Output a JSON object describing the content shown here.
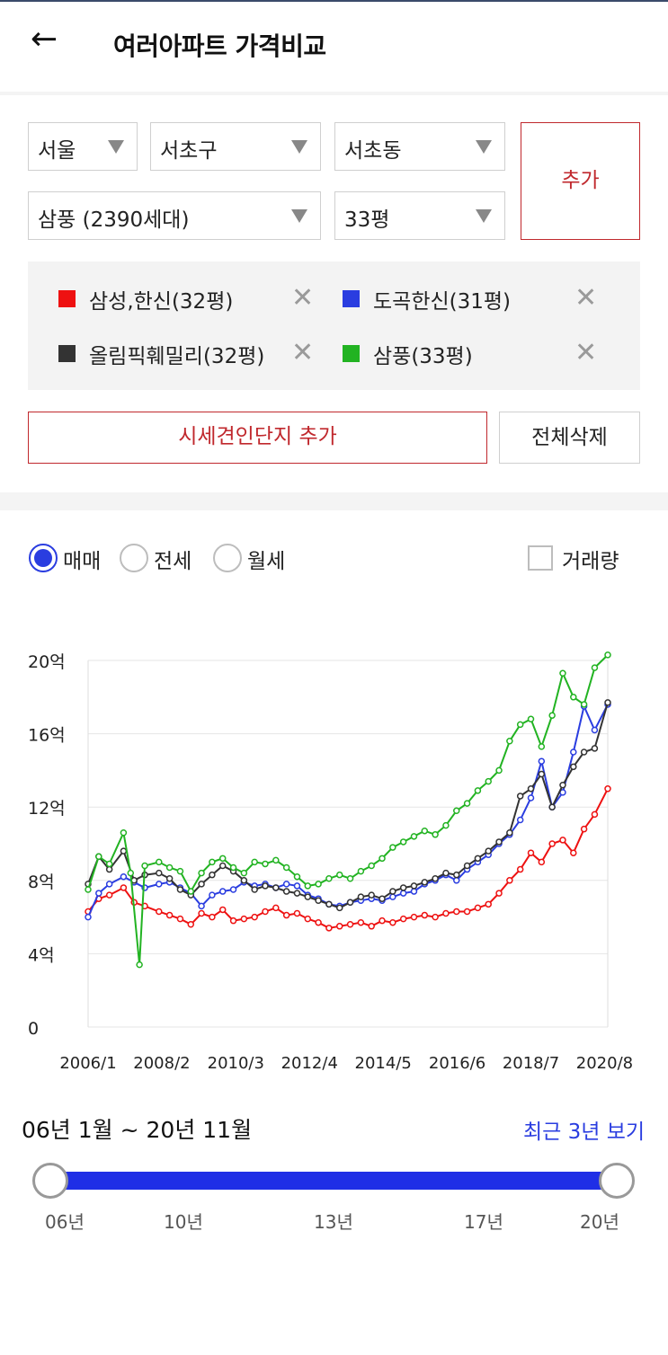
{
  "header": {
    "back_icon": "arrow-left-icon",
    "back_glyph": "←",
    "title": "여러아파트 가격비교"
  },
  "selectors": {
    "city": "서울",
    "district": "서초구",
    "dong": "서초동",
    "apartment": "삼풍 (2390세대)",
    "size": "33평",
    "add_label": "추가"
  },
  "legend": [
    {
      "label": "삼성,한신(32평)",
      "color": "#ee1111"
    },
    {
      "label": "도곡한신(31평)",
      "color": "#2a3de0"
    },
    {
      "label": "올림픽훼밀리(32평)",
      "color": "#333333"
    },
    {
      "label": "삼풍(33평)",
      "color": "#22b322"
    }
  ],
  "remove_glyph": "✕",
  "actions": {
    "add_similar": "시세견인단지 추가",
    "delete_all": "전체삭제"
  },
  "radio": {
    "sale": "매매",
    "jeonse": "전세",
    "monthly": "월세",
    "selected": "sale"
  },
  "volume_checkbox": {
    "label": "거래량",
    "checked": false
  },
  "range": {
    "text": "06년 1월 ~ 20년 11월",
    "recent_link": "최근 3년 보기",
    "ticks": [
      "06년",
      "10년",
      "13년",
      "17년",
      "20년"
    ]
  },
  "chart_data": {
    "type": "line",
    "ylim": [
      0,
      20
    ],
    "y_ticks": [
      0,
      4,
      8,
      12,
      16,
      20
    ],
    "y_tick_labels": [
      "0",
      "4억",
      "8억",
      "12억",
      "16억",
      "20억"
    ],
    "x_range": [
      2006.0,
      2020.67
    ],
    "x_ticks": [
      2006.0,
      2008.08,
      2010.17,
      2012.25,
      2014.33,
      2016.42,
      2018.5,
      2020.58
    ],
    "x_tick_labels": [
      "2006/1",
      "2008/2",
      "2010/3",
      "2012/4",
      "2014/5",
      "2016/6",
      "2018/7",
      "2020/8"
    ],
    "grid": true,
    "series": [
      {
        "name": "삼성,한신(32평)",
        "color": "#ee1111",
        "x": [
          2006.0,
          2006.3,
          2006.6,
          2007.0,
          2007.3,
          2007.6,
          2008.0,
          2008.3,
          2008.6,
          2008.9,
          2009.2,
          2009.5,
          2009.8,
          2010.1,
          2010.4,
          2010.7,
          2011.0,
          2011.3,
          2011.6,
          2011.9,
          2012.2,
          2012.5,
          2012.8,
          2013.1,
          2013.4,
          2013.7,
          2014.0,
          2014.3,
          2014.6,
          2014.9,
          2015.2,
          2015.5,
          2015.8,
          2016.1,
          2016.4,
          2016.7,
          2017.0,
          2017.3,
          2017.6,
          2017.9,
          2018.2,
          2018.5,
          2018.8,
          2019.1,
          2019.4,
          2019.7,
          2020.0,
          2020.3,
          2020.67
        ],
        "y": [
          6.3,
          7.0,
          7.2,
          7.6,
          6.8,
          6.6,
          6.3,
          6.1,
          5.9,
          5.6,
          6.2,
          6.0,
          6.4,
          5.8,
          5.9,
          6.0,
          6.3,
          6.5,
          6.1,
          6.2,
          5.9,
          5.7,
          5.4,
          5.5,
          5.6,
          5.7,
          5.5,
          5.8,
          5.7,
          5.9,
          6.0,
          6.1,
          6.0,
          6.2,
          6.3,
          6.3,
          6.5,
          6.7,
          7.3,
          8.0,
          8.6,
          9.5,
          9.0,
          10.0,
          10.2,
          9.5,
          10.8,
          11.6,
          13.0
        ]
      },
      {
        "name": "도곡한신(31평)",
        "color": "#2a3de0",
        "x": [
          2006.0,
          2006.3,
          2006.6,
          2007.0,
          2007.3,
          2007.6,
          2008.0,
          2008.3,
          2008.6,
          2008.9,
          2009.2,
          2009.5,
          2009.8,
          2010.1,
          2010.4,
          2010.7,
          2011.0,
          2011.3,
          2011.6,
          2011.9,
          2012.2,
          2012.5,
          2012.8,
          2013.1,
          2013.4,
          2013.7,
          2014.0,
          2014.3,
          2014.6,
          2014.9,
          2015.2,
          2015.5,
          2015.8,
          2016.1,
          2016.4,
          2016.7,
          2017.0,
          2017.3,
          2017.6,
          2017.9,
          2018.2,
          2018.5,
          2018.8,
          2019.1,
          2019.4,
          2019.7,
          2020.0,
          2020.3,
          2020.67
        ],
        "y": [
          6.0,
          7.3,
          7.8,
          8.2,
          7.9,
          7.6,
          7.8,
          7.9,
          7.6,
          7.3,
          6.6,
          7.2,
          7.4,
          7.5,
          7.9,
          7.7,
          7.8,
          7.6,
          7.8,
          7.7,
          7.2,
          7.0,
          6.7,
          6.6,
          6.8,
          6.9,
          7.0,
          6.9,
          7.1,
          7.3,
          7.4,
          7.8,
          8.0,
          8.3,
          8.0,
          8.6,
          9.0,
          9.4,
          10.0,
          10.5,
          11.3,
          12.5,
          14.5,
          12.0,
          12.8,
          15.0,
          17.5,
          16.2,
          17.6
        ]
      },
      {
        "name": "올림픽훼밀리(32평)",
        "color": "#333333",
        "x": [
          2006.0,
          2006.3,
          2006.6,
          2007.0,
          2007.3,
          2007.6,
          2008.0,
          2008.3,
          2008.6,
          2008.9,
          2009.2,
          2009.5,
          2009.8,
          2010.1,
          2010.4,
          2010.7,
          2011.0,
          2011.3,
          2011.6,
          2011.9,
          2012.2,
          2012.5,
          2012.8,
          2013.1,
          2013.4,
          2013.7,
          2014.0,
          2014.3,
          2014.6,
          2014.9,
          2015.2,
          2015.5,
          2015.8,
          2016.1,
          2016.4,
          2016.7,
          2017.0,
          2017.3,
          2017.6,
          2017.9,
          2018.2,
          2018.5,
          2018.8,
          2019.1,
          2019.4,
          2019.7,
          2020.0,
          2020.3,
          2020.67
        ],
        "y": [
          7.8,
          9.3,
          8.6,
          9.6,
          8.0,
          8.3,
          8.4,
          8.1,
          7.5,
          7.2,
          7.8,
          8.3,
          8.8,
          8.5,
          8.0,
          7.5,
          7.7,
          7.6,
          7.4,
          7.3,
          7.1,
          6.9,
          6.7,
          6.5,
          6.8,
          7.1,
          7.2,
          7.0,
          7.4,
          7.6,
          7.7,
          7.9,
          8.1,
          8.4,
          8.3,
          8.8,
          9.2,
          9.6,
          10.1,
          10.6,
          12.6,
          13.0,
          13.8,
          12.0,
          13.2,
          14.2,
          15.0,
          15.2,
          17.7
        ]
      },
      {
        "name": "삼풍(33평)",
        "color": "#22b322",
        "x": [
          2006.0,
          2006.3,
          2006.6,
          2007.0,
          2007.2,
          2007.45,
          2007.6,
          2008.0,
          2008.3,
          2008.6,
          2008.9,
          2009.2,
          2009.5,
          2009.8,
          2010.1,
          2010.4,
          2010.7,
          2011.0,
          2011.3,
          2011.6,
          2011.9,
          2012.2,
          2012.5,
          2012.8,
          2013.1,
          2013.4,
          2013.7,
          2014.0,
          2014.3,
          2014.6,
          2014.9,
          2015.2,
          2015.5,
          2015.8,
          2016.1,
          2016.4,
          2016.7,
          2017.0,
          2017.3,
          2017.6,
          2017.9,
          2018.2,
          2018.5,
          2018.8,
          2019.1,
          2019.4,
          2019.7,
          2020.0,
          2020.3,
          2020.67
        ],
        "y": [
          7.5,
          9.3,
          8.9,
          10.6,
          8.4,
          3.4,
          8.8,
          9.0,
          8.7,
          8.5,
          7.4,
          8.4,
          9.0,
          9.2,
          8.7,
          8.4,
          9.0,
          8.9,
          9.1,
          8.7,
          8.2,
          7.7,
          7.8,
          8.1,
          8.3,
          8.1,
          8.5,
          8.8,
          9.2,
          9.8,
          10.1,
          10.4,
          10.7,
          10.5,
          11.0,
          11.8,
          12.2,
          12.9,
          13.4,
          14.0,
          15.6,
          16.5,
          16.8,
          15.3,
          17.0,
          19.3,
          18.0,
          17.6,
          19.6,
          20.3
        ]
      }
    ]
  }
}
